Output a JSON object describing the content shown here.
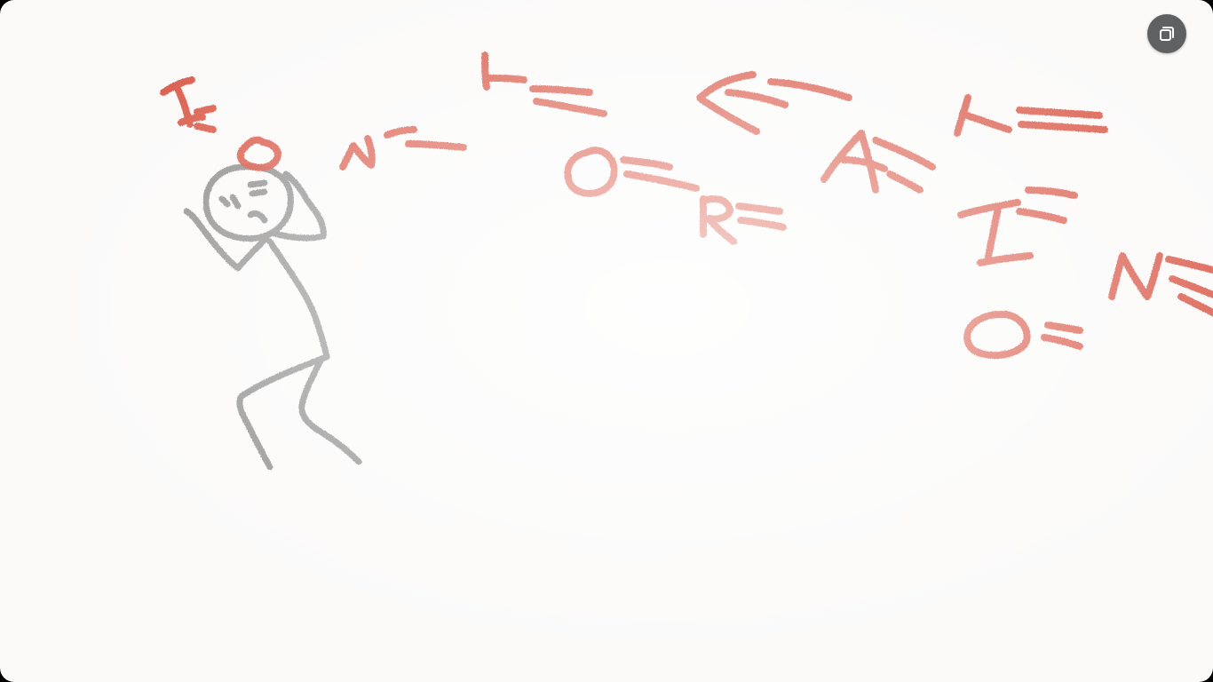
{
  "window": {
    "background": "#fbfaf9"
  },
  "drawing": {
    "ink_colors": {
      "figure": "#8a8a8a",
      "letters": "#d9513f"
    },
    "scribbled_text": "INFORMATION"
  },
  "toolbar": {
    "fullscreen_icon": "exit-fullscreen-icon",
    "fullscreen_button_color": "#5f6062"
  }
}
